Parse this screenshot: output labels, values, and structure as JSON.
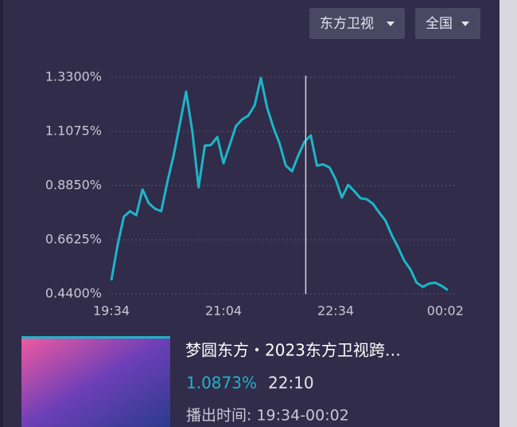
{
  "header": {
    "channel": "东方卫视",
    "region": "全国"
  },
  "chart_data": {
    "type": "line",
    "x": [
      "19:34",
      "19:39",
      "19:44",
      "19:49",
      "19:54",
      "19:59",
      "20:04",
      "20:09",
      "20:14",
      "20:19",
      "20:24",
      "20:29",
      "20:34",
      "20:39",
      "20:44",
      "20:49",
      "20:54",
      "20:59",
      "21:04",
      "21:09",
      "21:14",
      "21:19",
      "21:24",
      "21:29",
      "21:34",
      "21:39",
      "21:44",
      "21:49",
      "21:54",
      "21:59",
      "22:04",
      "22:09",
      "22:14",
      "22:19",
      "22:24",
      "22:29",
      "22:34",
      "22:39",
      "22:44",
      "22:49",
      "22:54",
      "22:59",
      "23:04",
      "23:09",
      "23:14",
      "23:19",
      "23:24",
      "23:29",
      "23:34",
      "23:39",
      "23:44",
      "23:49",
      "23:54",
      "23:59",
      "00:04"
    ],
    "series": [
      {
        "color": "#1db5c8",
        "values": [
          0.496,
          0.64,
          0.757,
          0.78,
          0.763,
          0.869,
          0.813,
          0.79,
          0.78,
          0.901,
          1.009,
          1.14,
          1.271,
          1.108,
          0.878,
          1.049,
          1.052,
          1.085,
          0.977,
          1.052,
          1.13,
          1.157,
          1.173,
          1.215,
          1.327,
          1.206,
          1.124,
          1.058,
          0.967,
          0.944,
          1.009,
          1.065,
          1.091,
          0.967,
          0.972,
          0.96,
          0.911,
          0.836,
          0.888,
          0.862,
          0.833,
          0.829,
          0.81,
          0.774,
          0.741,
          0.682,
          0.633,
          0.577,
          0.541,
          0.486,
          0.469,
          0.483,
          0.486,
          0.473,
          0.456
        ]
      }
    ],
    "ylim": [
      0.44,
      1.33
    ],
    "yticks": [
      {
        "value": 0.44,
        "label": "0.4400%"
      },
      {
        "value": 0.6625,
        "label": "0.6625%"
      },
      {
        "value": 0.885,
        "label": "0.8850%"
      },
      {
        "value": 1.1075,
        "label": "1.1075%"
      },
      {
        "value": 1.33,
        "label": "1.3300%"
      }
    ],
    "xlim": [
      "19:34",
      "00:04"
    ],
    "xticks": [
      "19:34",
      "21:04",
      "22:34",
      "00:02"
    ],
    "grid": true,
    "cursor": {
      "x": "22:10",
      "value": 1.0873,
      "value_label": "1.0873%"
    }
  },
  "program": {
    "title": "梦圆东方・2023东方卫视跨…",
    "airtime": "播出时间: 19:34-00:02"
  }
}
